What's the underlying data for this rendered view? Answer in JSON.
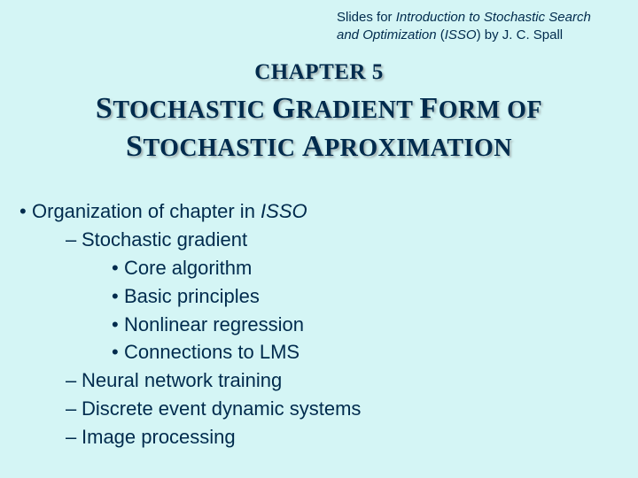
{
  "colors": {
    "background": "#d4f5f5",
    "text": "#002b4d",
    "shadow": "rgba(120,120,120,0.55)"
  },
  "attribution": {
    "prefix": "Slides for ",
    "title_italic": "Introduction to Stochastic Search and Optimization",
    "paren_open": " (",
    "abbrev_italic": "ISSO",
    "paren_close": ")",
    "suffix": " by J. C. Spall"
  },
  "heading": {
    "chapter": "CHAPTER 5",
    "title_parts": {
      "c1": "S",
      "w1": "TOCHASTIC ",
      "c2": "G",
      "w2": "RADIENT ",
      "c3": "F",
      "w3": "ORM OF",
      "c4": "S",
      "w4": "TOCHASTIC ",
      "c5": "A",
      "w5": "PROXIMATION"
    }
  },
  "content": {
    "line1_prefix": "Organization of chapter in ",
    "line1_italic": "ISSO",
    "items": {
      "a": "Stochastic gradient",
      "a1": "Core algorithm",
      "a2": "Basic principles",
      "a3": "Nonlinear regression",
      "a4": "Connections to LMS",
      "b": "Neural network training",
      "c": "Discrete event dynamic systems",
      "d": "Image processing"
    }
  },
  "symbols": {
    "bullet": "•",
    "dash": "–",
    "dot": "•"
  }
}
